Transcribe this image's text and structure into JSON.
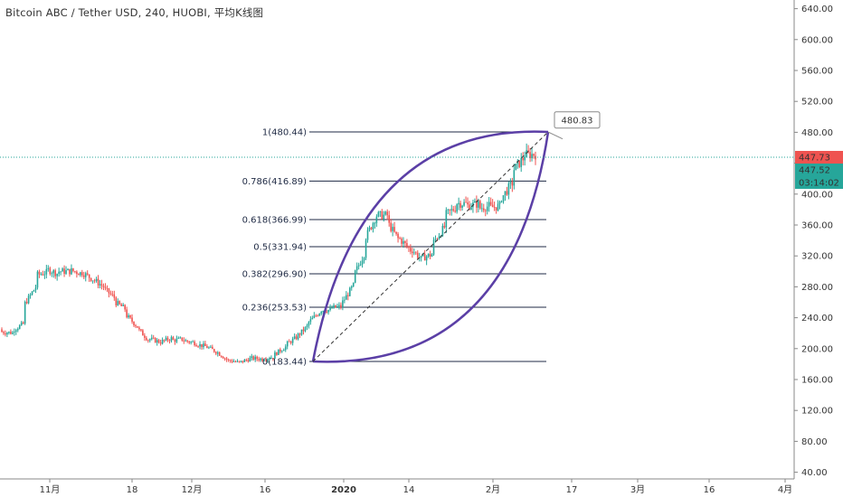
{
  "header": {
    "title": "Bitcoin ABC / Tether USD, 240, HUOBI, 平均K线图"
  },
  "colors": {
    "up": "#26a69a",
    "down": "#ef5350",
    "arc": "#5b3fa6",
    "fib": "#1f2a44",
    "price": "#ef5350",
    "bid": "#26a69a",
    "timer": "#26a69a"
  },
  "badges": {
    "last_price": "447.73",
    "bid_price": "447.52",
    "countdown": "03:14:02"
  },
  "callout": {
    "label": "480.83",
    "value": 480.83
  },
  "chart_data": {
    "type": "candlestick",
    "title": "",
    "xlabel": "",
    "ylabel": "",
    "ylim": [
      30,
      650
    ],
    "y_ticks": [
      "40.00",
      "80.00",
      "120.00",
      "160.00",
      "200.00",
      "240.00",
      "280.00",
      "320.00",
      "360.00",
      "400.00",
      "440.00",
      "480.00",
      "520.00",
      "560.00",
      "600.00",
      "640.00"
    ],
    "x_ticks": [
      "11月",
      "18",
      "12月",
      "16",
      "2020",
      "14",
      "2月",
      "17",
      "3月",
      "16",
      "4月"
    ],
    "last_price": 447.73,
    "fib_levels": [
      {
        "label": "1(480.44)",
        "value": 480.44
      },
      {
        "label": "0.786(416.89)",
        "value": 416.89
      },
      {
        "label": "0.618(366.99)",
        "value": 366.99
      },
      {
        "label": "0.5(331.94)",
        "value": 331.94
      },
      {
        "label": "0.382(296.90)",
        "value": 296.9
      },
      {
        "label": "0.236(253.53)",
        "value": 253.53
      },
      {
        "label": "0(183.44)",
        "value": 183.44
      }
    ],
    "trend": [
      [
        225,
        235
      ],
      [
        218,
        206
      ],
      [
        230,
        260
      ],
      [
        285,
        300
      ],
      [
        305,
        298
      ],
      [
        300,
        295
      ],
      [
        300,
        305
      ],
      [
        303,
        290
      ],
      [
        295,
        290
      ],
      [
        285,
        270
      ],
      [
        270,
        260
      ],
      [
        250,
        240
      ],
      [
        235,
        215
      ],
      [
        215,
        205
      ],
      [
        210,
        212
      ],
      [
        208,
        215
      ],
      [
        213,
        210
      ],
      [
        208,
        205
      ],
      [
        205,
        200
      ],
      [
        200,
        190
      ],
      [
        190,
        178
      ],
      [
        180,
        185
      ],
      [
        185,
        190
      ],
      [
        190,
        183
      ],
      [
        185,
        195
      ],
      [
        200,
        210
      ],
      [
        210,
        220
      ],
      [
        222,
        240
      ],
      [
        245,
        255
      ],
      [
        255,
        245
      ],
      [
        250,
        265
      ],
      [
        270,
        300
      ],
      [
        320,
        350
      ],
      [
        365,
        395
      ],
      [
        380,
        350
      ],
      [
        345,
        330
      ],
      [
        340,
        325
      ],
      [
        320,
        305
      ],
      [
        315,
        340
      ],
      [
        360,
        375
      ],
      [
        385,
        390
      ],
      [
        392,
        385
      ],
      [
        378,
        390
      ],
      [
        385,
        380
      ],
      [
        380,
        390
      ],
      [
        410,
        440
      ],
      [
        450,
        455
      ],
      [
        452,
        448
      ]
    ]
  }
}
